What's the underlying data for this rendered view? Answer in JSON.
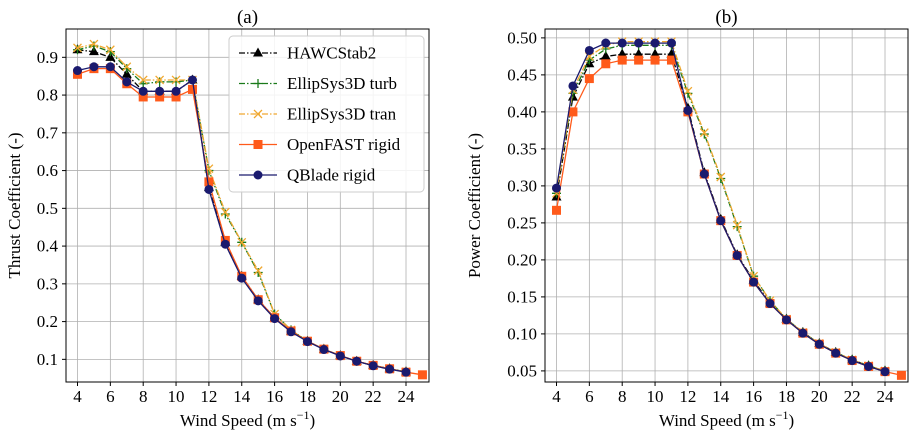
{
  "chart_data": [
    {
      "type": "line",
      "panel_label": "(a)",
      "xlabel": "Wind Speed (m s",
      "xlabel_sup": "−1",
      "xlabel_end": ")",
      "ylabel": "Thrust Coefficient (-)",
      "xlim": [
        3.3,
        25.4
      ],
      "ylim": [
        0.04,
        0.975
      ],
      "xticks": [
        4,
        6,
        8,
        10,
        12,
        14,
        16,
        18,
        20,
        22,
        24
      ],
      "yticks": [
        0.1,
        0.2,
        0.3,
        0.4,
        0.5,
        0.6,
        0.7,
        0.8,
        0.9
      ],
      "ytick_labels": [
        "0.1",
        "0.2",
        "0.3",
        "0.4",
        "0.5",
        "0.6",
        "0.7",
        "0.8",
        "0.9"
      ],
      "grid": true,
      "legend": "top-right",
      "series": [
        {
          "name": "HAWCStab2",
          "color": "#000000",
          "marker": "triangle",
          "dash": "6,2,1.5,2",
          "x": [
            4,
            5,
            6,
            7,
            8,
            9,
            10,
            11,
            12,
            13,
            14,
            15,
            16,
            17,
            18,
            19,
            20,
            21,
            22,
            23,
            24
          ],
          "y": [
            0.92,
            0.915,
            0.9,
            0.855,
            0.81,
            0.81,
            0.81,
            0.84,
            0.555,
            0.41,
            0.32,
            0.258,
            0.21,
            0.175,
            0.148,
            0.127,
            0.11,
            0.095,
            0.084,
            0.075,
            0.067
          ]
        },
        {
          "name": "EllipSys3D turb",
          "color": "#1a7a1a",
          "marker": "plus",
          "dash": "6,2,1.5,2",
          "x": [
            4,
            5,
            6,
            7,
            8,
            9,
            10,
            11,
            12,
            13,
            14,
            15,
            16,
            17,
            18,
            19,
            20,
            21,
            22,
            23,
            24
          ],
          "y": [
            0.92,
            0.93,
            0.915,
            0.87,
            0.83,
            0.835,
            0.835,
            0.84,
            0.6,
            0.485,
            0.41,
            0.33,
            0.22,
            0.178,
            0.148,
            0.127,
            0.11,
            0.095,
            0.084,
            0.075,
            0.067
          ]
        },
        {
          "name": "EllipSys3D tran",
          "color": "#f0a830",
          "marker": "x",
          "dash": "6,2,1.5,2",
          "x": [
            4,
            5,
            6,
            7,
            8,
            9,
            10,
            11,
            12,
            13,
            14,
            15,
            16,
            17,
            18,
            19,
            20,
            21,
            22,
            23,
            24
          ],
          "y": [
            0.925,
            0.935,
            0.92,
            0.875,
            0.84,
            0.84,
            0.84,
            0.84,
            0.605,
            0.49,
            0.41,
            0.335,
            0.22,
            0.178,
            0.148,
            0.127,
            0.11,
            0.095,
            0.084,
            0.075,
            0.067
          ]
        },
        {
          "name": "OpenFAST rigid",
          "color": "#ff5a1a",
          "marker": "square",
          "dash": "",
          "x": [
            4,
            5,
            6,
            7,
            8,
            9,
            10,
            11,
            12,
            13,
            14,
            15,
            16,
            17,
            18,
            19,
            20,
            21,
            22,
            23,
            24,
            25
          ],
          "y": [
            0.855,
            0.87,
            0.87,
            0.83,
            0.795,
            0.795,
            0.795,
            0.815,
            0.57,
            0.415,
            0.32,
            0.258,
            0.21,
            0.175,
            0.148,
            0.127,
            0.11,
            0.095,
            0.084,
            0.075,
            0.066,
            0.059
          ]
        },
        {
          "name": "QBlade rigid",
          "color": "#1a1a6e",
          "marker": "circle",
          "dash": "",
          "x": [
            4,
            5,
            6,
            7,
            8,
            9,
            10,
            11,
            12,
            13,
            14,
            15,
            16,
            17,
            18,
            19,
            20,
            21,
            22,
            23,
            24
          ],
          "y": [
            0.865,
            0.875,
            0.875,
            0.835,
            0.81,
            0.81,
            0.81,
            0.84,
            0.55,
            0.405,
            0.315,
            0.255,
            0.208,
            0.173,
            0.147,
            0.126,
            0.109,
            0.095,
            0.083,
            0.074,
            0.066
          ]
        }
      ]
    },
    {
      "type": "line",
      "panel_label": "(b)",
      "xlabel": "Wind Speed (m s",
      "xlabel_sup": "−1",
      "xlabel_end": ")",
      "ylabel": "Power Coefficient (-)",
      "xlim": [
        3.3,
        25.4
      ],
      "ylim": [
        0.035,
        0.512
      ],
      "xticks": [
        4,
        6,
        8,
        10,
        12,
        14,
        16,
        18,
        20,
        22,
        24
      ],
      "yticks": [
        0.05,
        0.1,
        0.15,
        0.2,
        0.25,
        0.3,
        0.35,
        0.4,
        0.45,
        0.5
      ],
      "ytick_labels": [
        "0.05",
        "0.10",
        "0.15",
        "0.20",
        "0.25",
        "0.30",
        "0.35",
        "0.40",
        "0.45",
        "0.50"
      ],
      "grid": true,
      "series": [
        {
          "name": "HAWCStab2",
          "color": "#000000",
          "marker": "triangle",
          "dash": "6,2,1.5,2",
          "x": [
            4,
            5,
            6,
            7,
            8,
            9,
            10,
            11,
            12,
            13,
            14,
            15,
            16,
            17,
            18,
            19,
            20,
            21,
            22,
            23,
            24
          ],
          "y": [
            0.285,
            0.42,
            0.465,
            0.475,
            0.478,
            0.478,
            0.478,
            0.478,
            0.405,
            0.318,
            0.255,
            0.207,
            0.172,
            0.142,
            0.12,
            0.102,
            0.087,
            0.075,
            0.065,
            0.057,
            0.05
          ]
        },
        {
          "name": "EllipSys3D turb",
          "color": "#1a7a1a",
          "marker": "plus",
          "dash": "6,2,1.5,2",
          "x": [
            4,
            5,
            6,
            7,
            8,
            9,
            10,
            11,
            12,
            13,
            14,
            15,
            16,
            17,
            18,
            19,
            20,
            21,
            22,
            23,
            24
          ],
          "y": [
            0.29,
            0.425,
            0.47,
            0.485,
            0.49,
            0.49,
            0.49,
            0.49,
            0.425,
            0.37,
            0.31,
            0.245,
            0.178,
            0.145,
            0.12,
            0.102,
            0.087,
            0.075,
            0.065,
            0.057,
            0.05
          ]
        },
        {
          "name": "EllipSys3D tran",
          "color": "#f0a830",
          "marker": "x",
          "dash": "6,2,1.5,2",
          "x": [
            4,
            5,
            6,
            7,
            8,
            9,
            10,
            11,
            12,
            13,
            14,
            15,
            16,
            17,
            18,
            19,
            20,
            21,
            22,
            23,
            24
          ],
          "y": [
            0.29,
            0.43,
            0.475,
            0.49,
            0.495,
            0.495,
            0.495,
            0.495,
            0.428,
            0.372,
            0.312,
            0.247,
            0.178,
            0.145,
            0.12,
            0.102,
            0.087,
            0.075,
            0.065,
            0.057,
            0.05
          ]
        },
        {
          "name": "OpenFAST rigid",
          "color": "#ff5a1a",
          "marker": "square",
          "dash": "",
          "x": [
            4,
            5,
            6,
            7,
            8,
            9,
            10,
            11,
            12,
            13,
            14,
            15,
            16,
            17,
            18,
            19,
            20,
            21,
            22,
            23,
            24,
            25
          ],
          "y": [
            0.267,
            0.4,
            0.445,
            0.465,
            0.47,
            0.47,
            0.47,
            0.47,
            0.4,
            0.316,
            0.253,
            0.206,
            0.17,
            0.141,
            0.119,
            0.101,
            0.086,
            0.074,
            0.064,
            0.056,
            0.049,
            0.044
          ]
        },
        {
          "name": "QBlade rigid",
          "color": "#1a1a6e",
          "marker": "circle",
          "dash": "",
          "x": [
            4,
            5,
            6,
            7,
            8,
            9,
            10,
            11,
            12,
            13,
            14,
            15,
            16,
            17,
            18,
            19,
            20,
            21,
            22,
            23,
            24
          ],
          "y": [
            0.297,
            0.435,
            0.483,
            0.493,
            0.493,
            0.493,
            0.493,
            0.493,
            0.402,
            0.316,
            0.253,
            0.206,
            0.17,
            0.141,
            0.119,
            0.101,
            0.086,
            0.074,
            0.064,
            0.056,
            0.049
          ]
        }
      ]
    }
  ]
}
